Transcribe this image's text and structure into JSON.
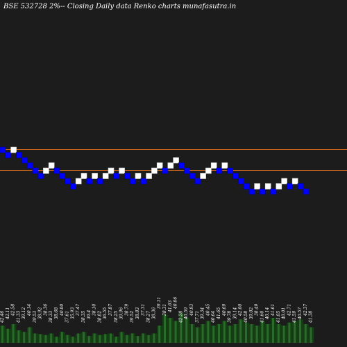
{
  "title": "BSE 532728  2%-- Closing Daily data  Renko  charts munafasutra.in",
  "colors": {
    "background": "#1c1c1c",
    "up_brick": "#ffffff",
    "down_brick": "#0000ff",
    "brick_border": "#0000a0",
    "level_line": "#d2691e",
    "volume_fill": "#143d14",
    "volume_bar": "#2a6a2a",
    "text": "#ffffff"
  },
  "chart_data": {
    "type": "renko",
    "x_axis": "brick index",
    "y_axis": "price",
    "levels": [
      46.0,
      42.0
    ],
    "bricks": [
      {
        "close": 45.5,
        "direction": "down"
      },
      {
        "close": 44.5,
        "direction": "down"
      },
      {
        "close": 45.5,
        "direction": "up"
      },
      {
        "close": 44.5,
        "direction": "down"
      },
      {
        "close": 43.5,
        "direction": "down"
      },
      {
        "close": 42.5,
        "direction": "down"
      },
      {
        "close": 41.5,
        "direction": "down"
      },
      {
        "close": 40.5,
        "direction": "down"
      },
      {
        "close": 41.5,
        "direction": "up"
      },
      {
        "close": 42.5,
        "direction": "up"
      },
      {
        "close": 41.5,
        "direction": "down"
      },
      {
        "close": 40.5,
        "direction": "down"
      },
      {
        "close": 39.5,
        "direction": "down"
      },
      {
        "close": 38.5,
        "direction": "down"
      },
      {
        "close": 39.5,
        "direction": "up"
      },
      {
        "close": 40.5,
        "direction": "up"
      },
      {
        "close": 39.5,
        "direction": "down"
      },
      {
        "close": 40.5,
        "direction": "up"
      },
      {
        "close": 39.5,
        "direction": "down"
      },
      {
        "close": 40.5,
        "direction": "up"
      },
      {
        "close": 41.5,
        "direction": "up"
      },
      {
        "close": 40.5,
        "direction": "down"
      },
      {
        "close": 41.5,
        "direction": "up"
      },
      {
        "close": 40.5,
        "direction": "down"
      },
      {
        "close": 39.5,
        "direction": "down"
      },
      {
        "close": 40.5,
        "direction": "up"
      },
      {
        "close": 39.5,
        "direction": "down"
      },
      {
        "close": 40.5,
        "direction": "up"
      },
      {
        "close": 41.5,
        "direction": "up"
      },
      {
        "close": 42.5,
        "direction": "up"
      },
      {
        "close": 41.5,
        "direction": "down"
      },
      {
        "close": 42.5,
        "direction": "up"
      },
      {
        "close": 43.5,
        "direction": "up"
      },
      {
        "close": 42.5,
        "direction": "down"
      },
      {
        "close": 41.5,
        "direction": "down"
      },
      {
        "close": 40.5,
        "direction": "down"
      },
      {
        "close": 39.5,
        "direction": "down"
      },
      {
        "close": 40.5,
        "direction": "up"
      },
      {
        "close": 41.5,
        "direction": "up"
      },
      {
        "close": 42.5,
        "direction": "up"
      },
      {
        "close": 41.5,
        "direction": "down"
      },
      {
        "close": 42.5,
        "direction": "up"
      },
      {
        "close": 41.5,
        "direction": "down"
      },
      {
        "close": 40.5,
        "direction": "down"
      },
      {
        "close": 39.5,
        "direction": "down"
      },
      {
        "close": 38.5,
        "direction": "down"
      },
      {
        "close": 37.5,
        "direction": "down"
      },
      {
        "close": 38.5,
        "direction": "up"
      },
      {
        "close": 37.5,
        "direction": "down"
      },
      {
        "close": 38.5,
        "direction": "up"
      },
      {
        "close": 37.5,
        "direction": "down"
      },
      {
        "close": 38.5,
        "direction": "up"
      },
      {
        "close": 39.5,
        "direction": "up"
      },
      {
        "close": 38.5,
        "direction": "down"
      },
      {
        "close": 39.5,
        "direction": "up"
      },
      {
        "close": 38.5,
        "direction": "down"
      },
      {
        "close": 37.5,
        "direction": "down"
      }
    ],
    "volume_labels": [
      "42.46",
      "42.11",
      "42.58",
      "41.33",
      "39.12",
      "40.14",
      "39.53",
      "38.92",
      "38.36",
      "38.33",
      "38.68",
      "40.00",
      "37.61",
      "35.93",
      "37.47",
      "38.35",
      "39.4",
      "38.10",
      "38.82",
      "36.55",
      "37.87",
      "38.25",
      "39.96",
      "38.79",
      "39.52",
      "38.83",
      "37.31",
      "38.27",
      "38.36",
      "39.11",
      "38.31",
      "41.63",
      "40.06",
      "42.28",
      "40.59",
      "40.93",
      "37.71",
      "39.34",
      "40.45",
      "40.64",
      "41.65",
      "40.69",
      "39.78",
      "39.14",
      "42.00",
      "40.58",
      "39.02",
      "38.49",
      "41.60",
      "40.14",
      "41.61",
      "41.05",
      "40.01",
      "42.71",
      "41.59",
      "40.57",
      "42.37",
      "41.38"
    ],
    "volume": [
      0.55,
      0.45,
      0.6,
      0.4,
      0.35,
      0.5,
      0.3,
      0.28,
      0.25,
      0.3,
      0.2,
      0.35,
      0.25,
      0.2,
      0.3,
      0.35,
      0.22,
      0.3,
      0.25,
      0.28,
      0.3,
      0.2,
      0.35,
      0.25,
      0.3,
      0.22,
      0.3,
      0.25,
      0.3,
      0.55,
      0.9,
      0.8,
      0.7,
      0.95,
      0.8,
      0.6,
      0.5,
      0.6,
      0.7,
      0.55,
      0.6,
      0.7,
      0.55,
      0.6,
      0.75,
      0.65,
      0.6,
      0.55,
      0.7,
      0.6,
      0.8,
      0.6,
      0.55,
      0.65,
      0.7,
      0.75,
      0.6,
      0.5
    ]
  }
}
